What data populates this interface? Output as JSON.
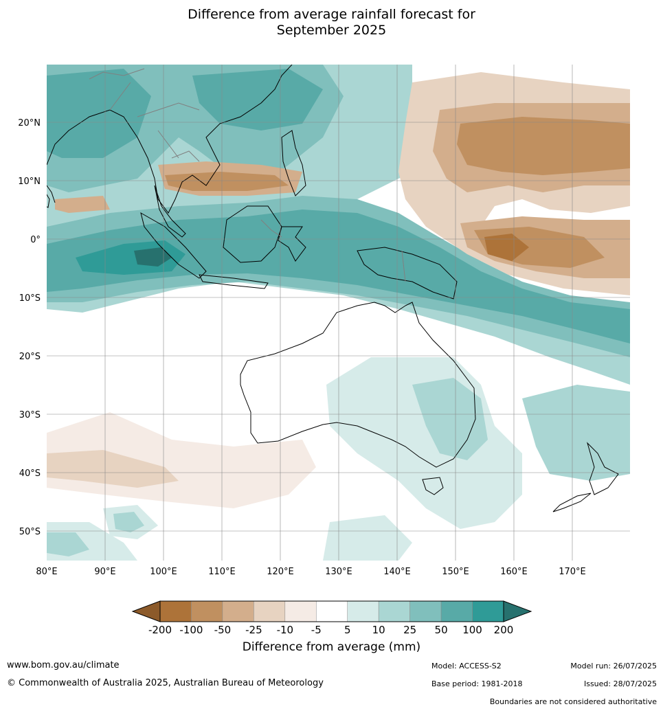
{
  "title": {
    "line1": "Difference from average rainfall forecast for",
    "line2": "September 2025"
  },
  "axes": {
    "lat_labels": [
      "20°N",
      "10°N",
      "0°",
      "10°S",
      "20°S",
      "30°S",
      "40°S",
      "50°S"
    ],
    "lon_labels": [
      "80°E",
      "90°E",
      "100°E",
      "110°E",
      "120°E",
      "130°E",
      "140°E",
      "150°E",
      "160°E",
      "170°E"
    ]
  },
  "colorbar": {
    "title": "Difference from average (mm)",
    "tick_labels": [
      "-200",
      "-100",
      "-50",
      "-25",
      "-10",
      "-5",
      "5",
      "10",
      "25",
      "50",
      "100",
      "200"
    ],
    "colors": [
      "#8c5a2a",
      "#ad7339",
      "#c09060",
      "#d3ae8c",
      "#e7d3c1",
      "#f5ebe5",
      "#ffffff",
      "#d6ebe9",
      "#aad6d3",
      "#80bfbc",
      "#58aaa7",
      "#2f9b97",
      "#27716e"
    ]
  },
  "map_colors": {
    "land_outline": "#000000",
    "border": "#808080",
    "grid": "#888888"
  },
  "footer": {
    "website": "www.bom.gov.au/climate",
    "copyright": "© Commonwealth of Australia 2025, Australian Bureau of Meteorology",
    "model": "Model: ACCESS-S2",
    "base_period": "Base period: 1981-2018",
    "model_run": "Model run: 26/07/2025",
    "issued": "Issued: 28/07/2025",
    "disclaimer": "Boundaries are not considered authoritative"
  }
}
